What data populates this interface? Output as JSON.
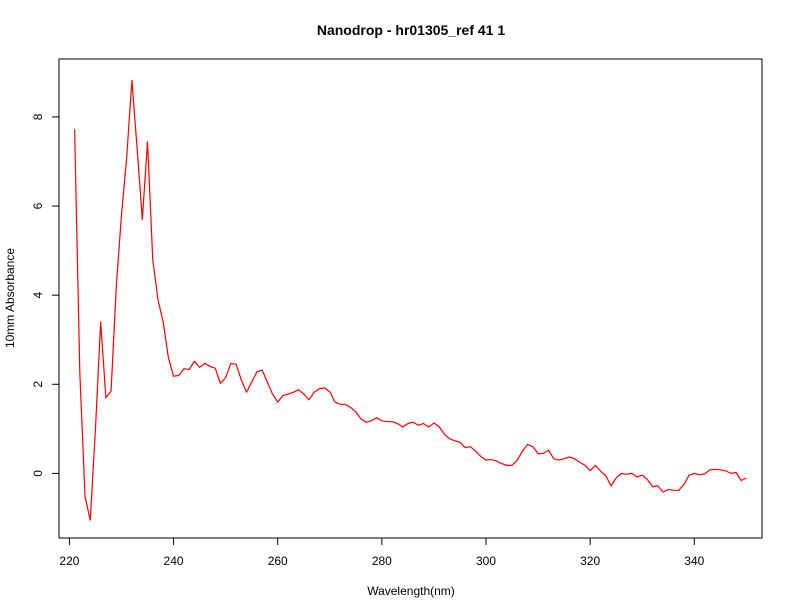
{
  "chart_data": {
    "type": "line",
    "title": "Nanodrop - hr01305_ref 41  1",
    "xlabel": "Wavelength(nm)",
    "ylabel": "10mm Absorbance",
    "xlim": [
      218,
      353
    ],
    "ylim": [
      -1.45,
      9.3
    ],
    "xticks": [
      220,
      240,
      260,
      280,
      300,
      320,
      340
    ],
    "yticks": [
      0,
      2,
      4,
      6,
      8
    ],
    "grid": false,
    "legend": "none",
    "series": [
      {
        "color": "#ff0000",
        "x": [
          221,
          222,
          223,
          224,
          225,
          226,
          227,
          228,
          229,
          230,
          231,
          232,
          233,
          234,
          235,
          236,
          237,
          238,
          239,
          240,
          241,
          242,
          243,
          244,
          245,
          246,
          247,
          248,
          249,
          250,
          251,
          252,
          253,
          254,
          255,
          256,
          257,
          258,
          259,
          260,
          261,
          262,
          263,
          264,
          265,
          266,
          267,
          268,
          269,
          270,
          271,
          272,
          273,
          274,
          275,
          276,
          277,
          278,
          279,
          280,
          281,
          282,
          283,
          284,
          285,
          286,
          287,
          288,
          289,
          290,
          291,
          292,
          293,
          294,
          295,
          296,
          297,
          298,
          299,
          300,
          301,
          302,
          303,
          304,
          305,
          306,
          307,
          308,
          309,
          310,
          311,
          312,
          313,
          314,
          315,
          316,
          317,
          318,
          319,
          320,
          321,
          322,
          323,
          324,
          325,
          326,
          327,
          328,
          329,
          330,
          331,
          332,
          333,
          334,
          335,
          336,
          337,
          338,
          339,
          340,
          341,
          342,
          343,
          344,
          345,
          346,
          347,
          348,
          349,
          350
        ],
        "y": [
          7.72,
          2.25,
          -0.52,
          -1.05,
          1.0,
          3.4,
          1.7,
          1.85,
          4.2,
          5.8,
          7.1,
          8.82,
          7.3,
          5.7,
          7.44,
          4.8,
          3.9,
          3.4,
          2.6,
          2.18,
          2.2,
          2.35,
          2.33,
          2.52,
          2.38,
          2.47,
          2.4,
          2.36,
          2.02,
          2.15,
          2.47,
          2.45,
          2.1,
          1.82,
          2.05,
          2.28,
          2.32,
          2.05,
          1.78,
          1.6,
          1.75,
          1.78,
          1.82,
          1.88,
          1.78,
          1.65,
          1.82,
          1.9,
          1.92,
          1.83,
          1.6,
          1.55,
          1.55,
          1.48,
          1.38,
          1.22,
          1.15,
          1.18,
          1.25,
          1.18,
          1.16,
          1.16,
          1.12,
          1.04,
          1.12,
          1.15,
          1.08,
          1.12,
          1.04,
          1.13,
          1.05,
          0.88,
          0.78,
          0.73,
          0.7,
          0.58,
          0.6,
          0.5,
          0.38,
          0.3,
          0.31,
          0.28,
          0.22,
          0.18,
          0.18,
          0.3,
          0.5,
          0.65,
          0.6,
          0.44,
          0.45,
          0.52,
          0.33,
          0.3,
          0.33,
          0.37,
          0.33,
          0.25,
          0.18,
          0.06,
          0.18,
          0.05,
          -0.05,
          -0.28,
          -0.1,
          0.0,
          -0.02,
          0.0,
          -0.08,
          -0.04,
          -0.14,
          -0.3,
          -0.28,
          -0.42,
          -0.36,
          -0.38,
          -0.38,
          -0.25,
          -0.04,
          0.0,
          -0.03,
          -0.01,
          0.08,
          0.09,
          0.08,
          0.06,
          0.0,
          0.02,
          -0.16,
          -0.1
        ]
      }
    ]
  }
}
